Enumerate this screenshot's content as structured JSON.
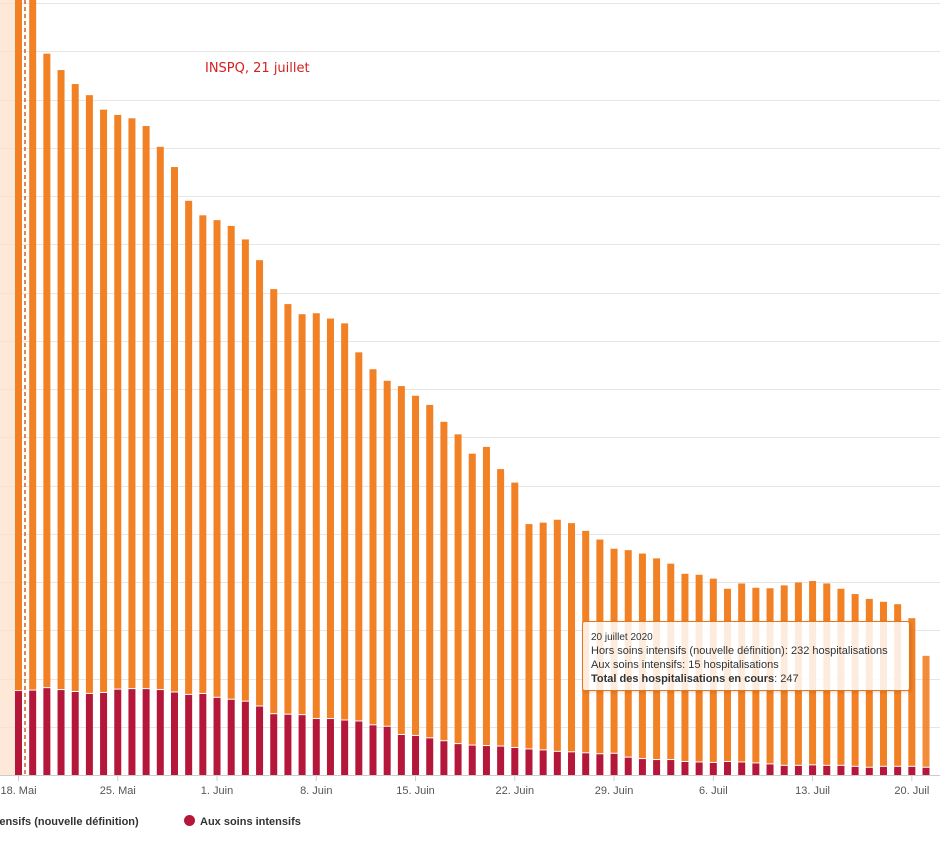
{
  "colors": {
    "hors_soins": "#f28024",
    "soins_intensifs": "#b5173b",
    "cutoff_line": "#d45f1c",
    "annotation_text": "#d81e1e",
    "gridline": "#e6e6e6",
    "shaded_region": "#fde0c8"
  },
  "annotation": {
    "text": "INSPQ, 21 juillet"
  },
  "tooltip": {
    "date": "20 juillet 2020",
    "line1_name": "Hors soins intensifs (nouvelle définition)",
    "line1_value": "232 hospitalisations",
    "line2_name": "Aux soins intensifs",
    "line2_value": "15 hospitalisations",
    "line3_name": "Total des hospitalisations en cours",
    "line3_value": "247"
  },
  "legend": {
    "items": [
      {
        "label": "Hors soins intensifs (nouvelle définition)",
        "color": "#f28024"
      },
      {
        "label": "Aux soins intensifs",
        "color": "#b5173b"
      }
    ]
  },
  "chart_data": {
    "type": "bar",
    "stacked": true,
    "title": "",
    "xlabel": "",
    "ylabel": "",
    "grid": true,
    "ylim": [
      0,
      1600
    ],
    "x_tick_labels": [
      "18. Mai",
      "25. Mai",
      "1. Juin",
      "8. Juin",
      "15. Juin",
      "22. Juin",
      "29. Juin",
      "6. Juil",
      "13. Juil",
      "20. Juil"
    ],
    "x_tick_positions": [
      0,
      7,
      14,
      21,
      28,
      35,
      42,
      49,
      56,
      63
    ],
    "categories": [
      "17 mai",
      "18 mai",
      "19 mai",
      "20 mai",
      "21 mai",
      "22 mai",
      "23 mai",
      "24 mai",
      "25 mai",
      "26 mai",
      "27 mai",
      "28 mai",
      "29 mai",
      "30 mai",
      "31 mai",
      "1 juin",
      "2 juin",
      "3 juin",
      "4 juin",
      "5 juin",
      "6 juin",
      "7 juin",
      "8 juin",
      "9 juin",
      "10 juin",
      "11 juin",
      "12 juin",
      "13 juin",
      "14 juin",
      "15 juin",
      "16 juin",
      "17 juin",
      "18 juin",
      "19 juin",
      "20 juin",
      "21 juin",
      "22 juin",
      "23 juin",
      "24 juin",
      "25 juin",
      "26 juin",
      "27 juin",
      "28 juin",
      "29 juin",
      "30 juin",
      "1 juil",
      "2 juil",
      "3 juil",
      "4 juil",
      "5 juil",
      "6 juil",
      "7 juil",
      "8 juil",
      "9 juil",
      "10 juil",
      "11 juil",
      "12 juil",
      "13 juil",
      "14 juil",
      "15 juil",
      "16 juil",
      "17 juil",
      "18 juil",
      "19 juil",
      "20 juil"
    ],
    "series": [
      {
        "name": "Aux soins intensifs",
        "values": [
          174,
          175,
          180,
          176,
          172,
          168,
          170,
          177,
          178,
          178,
          176,
          171,
          166,
          168,
          160,
          156,
          152,
          142,
          126,
          125,
          124,
          116,
          116,
          113,
          111,
          103,
          100,
          83,
          81,
          76,
          70,
          64,
          61,
          60,
          59,
          56,
          53,
          51,
          48,
          47,
          45,
          43,
          44,
          36,
          33,
          31,
          31,
          27,
          26,
          25,
          27,
          26,
          24,
          22,
          19,
          19,
          20,
          19,
          19,
          17,
          15,
          17,
          17,
          17,
          15
        ]
      },
      {
        "name": "Hors soins intensifs (nouvelle définition)",
        "values": [
          1500,
          1500,
          1315,
          1285,
          1260,
          1241,
          1209,
          1191,
          1183,
          1167,
          1126,
          1089,
          1024,
          992,
          990,
          982,
          958,
          925,
          881,
          851,
          831,
          841,
          830,
          823,
          765,
          738,
          717,
          723,
          705,
          691,
          662,
          642,
          605,
          620,
          575,
          550,
          467,
          472,
          481,
          475,
          461,
          445,
          425,
          430,
          426,
          418,
          407,
          390,
          389,
          382,
          359,
          371,
          364,
          365,
          374,
          380,
          382,
          378,
          367,
          358,
          350,
          342,
          337,
          308,
          232
        ]
      }
    ]
  }
}
